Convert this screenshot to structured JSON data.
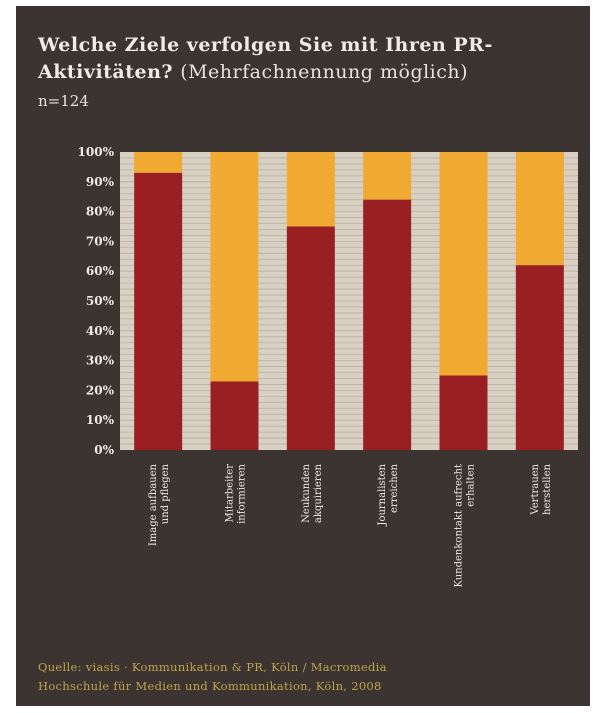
{
  "colors": {
    "background": "#3b3431",
    "plot_background": "#d8d1c3",
    "grid": "#b9b1a2",
    "series_primary": "#9a1f22",
    "series_rest": "#f0aa32",
    "text_light": "#f0ece3",
    "source_text": "#bfa34a"
  },
  "title_bold": "Welche Ziele verfolgen Sie mit Ihren PR-Aktivitäten?",
  "title_light": "(Mehrfachnennung möglich)",
  "n_label": "n=124",
  "source_line1": "Quelle: viasis · Kommunikation & PR, Köln / Macromedia",
  "source_line2": "Hochschule für Medien und Kommunikation, Köln, 2008",
  "chart_data": {
    "type": "bar",
    "stacked": true,
    "categories": [
      "Image aufbauen und pflegen",
      "Mitarbeiter informieren",
      "Neukunden akquirieren",
      "Journalisten erreichen",
      "Kundenkontakt aufrecht erhalten",
      "Vertrauen herstellen"
    ],
    "series": [
      {
        "values": [
          93,
          23,
          75,
          84,
          25,
          62
        ]
      },
      {
        "values": [
          7,
          77,
          25,
          16,
          75,
          38
        ]
      }
    ],
    "yticks": [
      "0%",
      "10%",
      "20%",
      "30%",
      "40%",
      "50%",
      "60%",
      "70%",
      "80%",
      "90%",
      "100%"
    ],
    "ylim": [
      0,
      100
    ],
    "grid": true
  }
}
